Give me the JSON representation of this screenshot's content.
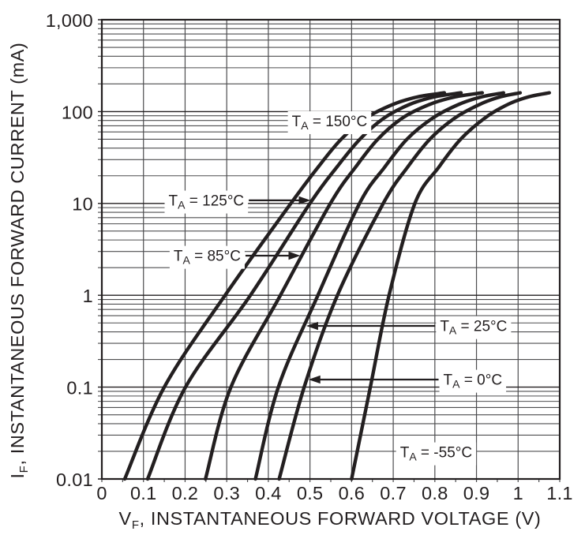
{
  "figure": {
    "description": "Semilog plot of instantaneous forward current versus instantaneous forward voltage for six ambient temperatures"
  },
  "chart_data": {
    "type": "line",
    "title": "",
    "xlabel": {
      "prefix": "V",
      "sub": "F",
      "rest": ", INSTANTANEOUS FORWARD VOLTAGE (V)"
    },
    "ylabel": {
      "prefix": "I",
      "sub": "F",
      "rest": ", INSTANTANEOUS FORWARD CURRENT (mA)"
    },
    "x_axis": {
      "min": 0,
      "max": 1.1,
      "tick_step": 0.1,
      "minor_tick_step": 0.05,
      "tick_values": [
        0,
        0.1,
        0.2,
        0.3,
        0.4,
        0.5,
        0.6,
        0.7,
        0.8,
        0.9,
        1,
        1.1
      ],
      "tick_labels": [
        "0",
        "0.1",
        "0.2",
        "0.3",
        "0.4",
        "0.5",
        "0.6",
        "0.7",
        "0.8",
        "0.9",
        "1",
        "1.1"
      ]
    },
    "y_axis": {
      "scale": "log",
      "min": 0.01,
      "max": 1000,
      "tick_values": [
        1000,
        100,
        10,
        1,
        0.1,
        0.01
      ],
      "tick_labels": [
        "1,000",
        "100",
        "10",
        "1",
        "0.1",
        "0.01"
      ]
    },
    "grid": "on",
    "series": [
      {
        "name": "TA = 150°C",
        "temperature_c": 150,
        "points": [
          [
            0.055,
            0.01
          ],
          [
            0.15,
            0.1
          ],
          [
            0.296,
            1
          ],
          [
            0.454,
            10
          ],
          [
            0.52,
            25
          ],
          [
            0.575,
            50
          ],
          [
            0.635,
            85
          ],
          [
            0.7,
            120
          ],
          [
            0.76,
            145
          ],
          [
            0.823,
            160
          ]
        ]
      },
      {
        "name": "TA = 125°C",
        "temperature_c": 125,
        "points": [
          [
            0.11,
            0.01
          ],
          [
            0.201,
            0.1
          ],
          [
            0.357,
            1
          ],
          [
            0.5,
            10
          ],
          [
            0.565,
            25
          ],
          [
            0.62,
            50
          ],
          [
            0.678,
            85
          ],
          [
            0.74,
            120
          ],
          [
            0.8,
            145
          ],
          [
            0.863,
            160
          ]
        ]
      },
      {
        "name": "TA = 85°C",
        "temperature_c": 85,
        "points": [
          [
            0.249,
            0.01
          ],
          [
            0.31,
            0.1
          ],
          [
            0.429,
            1
          ],
          [
            0.549,
            10
          ],
          [
            0.61,
            25
          ],
          [
            0.663,
            50
          ],
          [
            0.722,
            85
          ],
          [
            0.788,
            120
          ],
          [
            0.85,
            145
          ],
          [
            0.914,
            160
          ]
        ]
      },
      {
        "name": "TA = 25°C",
        "temperature_c": 25,
        "points": [
          [
            0.369,
            0.01
          ],
          [
            0.424,
            0.1
          ],
          [
            0.519,
            1
          ],
          [
            0.619,
            10
          ],
          [
            0.68,
            25
          ],
          [
            0.733,
            50
          ],
          [
            0.795,
            85
          ],
          [
            0.858,
            120
          ],
          [
            0.913,
            145
          ],
          [
            0.965,
            160
          ]
        ]
      },
      {
        "name": "TA = 0°C",
        "temperature_c": 0,
        "points": [
          [
            0.426,
            0.01
          ],
          [
            0.486,
            0.1
          ],
          [
            0.566,
            1
          ],
          [
            0.676,
            10
          ],
          [
            0.735,
            25
          ],
          [
            0.788,
            50
          ],
          [
            0.848,
            85
          ],
          [
            0.908,
            120
          ],
          [
            0.958,
            145
          ],
          [
            1.005,
            160
          ]
        ]
      },
      {
        "name": "TA = -55°C",
        "temperature_c": -55,
        "points": [
          [
            0.6,
            0.01
          ],
          [
            0.645,
            0.1
          ],
          [
            0.69,
            1
          ],
          [
            0.752,
            10
          ],
          [
            0.81,
            25
          ],
          [
            0.862,
            50
          ],
          [
            0.92,
            85
          ],
          [
            0.976,
            120
          ],
          [
            1.026,
            145
          ],
          [
            1.075,
            160
          ]
        ]
      }
    ],
    "annotations": [
      {
        "prefix": "T",
        "sub": "A",
        "rest": " = 150°C",
        "v": 0.547,
        "i": 79,
        "arrow": null,
        "series": 0
      },
      {
        "prefix": "T",
        "sub": "A",
        "rest": " = 125°C",
        "v": 0.251,
        "i": 10.8,
        "arrow": "right",
        "series": 1
      },
      {
        "prefix": "T",
        "sub": "A",
        "rest": " = 85°C",
        "v": 0.253,
        "i": 2.7,
        "arrow": "right",
        "series": 2
      },
      {
        "prefix": "T",
        "sub": "A",
        "rest": " = 25°C",
        "v": 0.893,
        "i": 0.464,
        "arrow": "left",
        "series": 3
      },
      {
        "prefix": "T",
        "sub": "A",
        "rest": " = 0°C",
        "v": 0.891,
        "i": 0.121,
        "arrow": "left",
        "series": 4
      },
      {
        "prefix": "T",
        "sub": "A",
        "rest": " = -55°C",
        "v": 0.803,
        "i": 0.0196,
        "arrow": null,
        "series": 5
      }
    ],
    "colors": {
      "curve": "#231f20",
      "grid_minor": "#4d4d4f",
      "grid_major": "#231f20",
      "frame": "#231f20",
      "text": "#231f20",
      "background": "#ffffff"
    }
  }
}
